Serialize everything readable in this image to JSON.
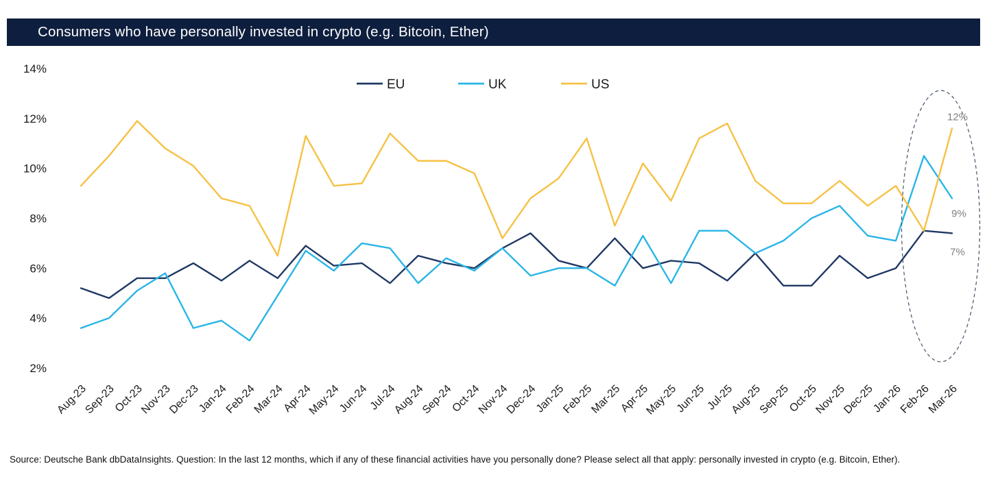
{
  "title_bar": {
    "title": "Consumers who have personally invested in crypto (e.g. Bitcoin, Ether)"
  },
  "source_note": "Source: Deutsche Bank dbDataInsights. Question: In the last 12 months, which if any of these financial activities have you personally done? Please select all that apply: personally invested in crypto (e.g. Bitcoin, Ether).",
  "colors": {
    "title_bar_bg": "#0e1e3e",
    "eu": "#1f3864",
    "uk": "#29b5e6",
    "us": "#f6c144",
    "axis_text": "#1a1a1a",
    "end_label_gray": "#7f7f7f",
    "ellipse": "#44546a"
  },
  "chart_data": {
    "type": "line",
    "title": "Consumers who have personally invested in crypto (e.g. Bitcoin, Ether)",
    "categories": [
      "Aug-23",
      "Sep-23",
      "Oct-23",
      "Nov-23",
      "Dec-23",
      "Jan-24",
      "Feb-24",
      "Mar-24",
      "Apr-24",
      "May-24",
      "Jun-24",
      "Jul-24",
      "Aug-24",
      "Sep-24",
      "Oct-24",
      "Nov-24",
      "Dec-24",
      "Jan-25",
      "Feb-25",
      "Mar-25",
      "Apr-25",
      "May-25",
      "Jun-25",
      "Jul-25",
      "Aug-25",
      "Sep-25",
      "Oct-25",
      "Nov-25",
      "Dec-25",
      "Jan-26",
      "Feb-26",
      "Mar-26"
    ],
    "series": [
      {
        "name": "EU",
        "color_key": "eu",
        "values": [
          5.2,
          4.8,
          5.6,
          5.6,
          6.2,
          5.5,
          6.3,
          5.6,
          6.9,
          6.1,
          6.2,
          5.4,
          6.5,
          6.2,
          6.0,
          6.8,
          7.4,
          6.3,
          6.0,
          7.2,
          6.0,
          6.3,
          6.2,
          5.5,
          6.6,
          5.3,
          5.3,
          6.5,
          5.6,
          6.0,
          7.5,
          7.4
        ]
      },
      {
        "name": "UK",
        "color_key": "uk",
        "values": [
          3.6,
          4.0,
          5.1,
          5.8,
          3.6,
          3.9,
          3.1,
          4.9,
          6.7,
          5.9,
          7.0,
          6.8,
          5.4,
          6.4,
          5.9,
          6.8,
          5.7,
          6.0,
          6.0,
          5.3,
          7.3,
          5.4,
          7.5,
          7.5,
          6.6,
          7.1,
          8.0,
          8.5,
          7.3,
          7.1,
          10.5,
          8.8
        ]
      },
      {
        "name": "US",
        "color_key": "us",
        "values": [
          9.3,
          10.5,
          11.9,
          10.8,
          10.1,
          8.8,
          8.5,
          6.5,
          11.3,
          9.3,
          9.4,
          11.4,
          10.3,
          10.3,
          9.8,
          7.2,
          8.8,
          9.6,
          11.2,
          7.7,
          10.2,
          8.7,
          11.2,
          11.8,
          9.5,
          8.6,
          8.6,
          9.5,
          8.5,
          9.3,
          7.5,
          11.6
        ]
      }
    ],
    "ylim": [
      2,
      14
    ],
    "y_ticks": [
      "2%",
      "4%",
      "6%",
      "8%",
      "10%",
      "12%",
      "14%"
    ],
    "grid": false,
    "legend_position": "top-center",
    "end_labels": [
      {
        "series": "US",
        "text": "12%"
      },
      {
        "series": "UK",
        "text": "9%"
      },
      {
        "series": "EU",
        "text": "7%"
      }
    ],
    "highlight_ellipse": true
  }
}
